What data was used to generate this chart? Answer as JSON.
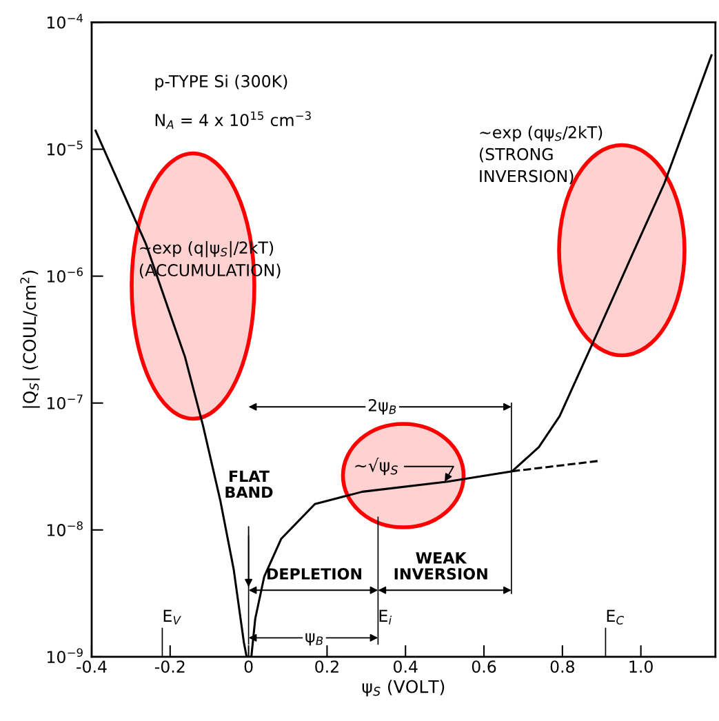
{
  "chart_data": {
    "type": "line",
    "xlabel": "ψ$_{S}$ (VOLT)",
    "ylabel": "|Q$_{S}$| (COUL/cm$^{2}$)",
    "log": "y",
    "xlim": [
      -0.4,
      1.19
    ],
    "ylim": [
      1e-09,
      0.0001
    ],
    "xticks": [
      {
        "value": -0.4,
        "label": "-0.4"
      },
      {
        "value": -0.2,
        "label": "-0.2"
      },
      0,
      0.2,
      0.4,
      0.6,
      0.8,
      {
        "value": 1.0,
        "label": "1.0"
      }
    ],
    "yticks": [
      {
        "value": 1e-09,
        "label": "10$^{−9}$"
      },
      {
        "value": 1e-08,
        "label": "10$^{−8}$"
      },
      {
        "value": 1e-07,
        "label": "10$^{−7}$"
      },
      {
        "value": 1e-06,
        "label": "10$^{−6}$"
      },
      {
        "value": 1e-05,
        "label": "10$^{−5}$"
      },
      {
        "value": 0.0001,
        "label": "10$^{−4}$"
      }
    ],
    "grid": false,
    "legend": false,
    "series": [
      {
        "color": "#000000",
        "line_style": "solid",
        "x": [
          -0.39,
          -0.262,
          -0.162,
          -0.116,
          -0.072,
          -0.038,
          -0.012,
          -0.005,
          0.007,
          0.017,
          0.04,
          0.083,
          0.169,
          0.29,
          0.507,
          0.672,
          0.74,
          0.793,
          0.893,
          0.979,
          1.06,
          1.18
        ],
        "values": [
          1.4e-05,
          1.8e-06,
          2.3e-07,
          6.6e-08,
          1.7e-08,
          4.9e-09,
          1.3e-09,
          1e-09,
          1e-09,
          2e-09,
          4.3e-09,
          8.5e-09,
          1.6e-08,
          2e-08,
          2.4e-08,
          2.9e-08,
          4.5e-08,
          7.9e-08,
          3.8e-07,
          1.5e-06,
          5.4e-06,
          5.5e-05
        ]
      },
      {
        "color": "#000000",
        "line_style": "dashed",
        "x": [
          0.672,
          0.893
        ],
        "values": [
          2.9e-08,
          3.5e-08
        ]
      }
    ],
    "ref_lines": [
      {
        "axis": "x",
        "value": 0
      },
      {
        "axis": "x",
        "value": 0.33,
        "label": "E$_{i}$"
      },
      {
        "axis": "x",
        "value": 0.67
      },
      {
        "axis": "x",
        "value": -0.22,
        "label": "E$_{V}$"
      },
      {
        "axis": "x",
        "value": 0.91,
        "label": "E$_{C}$"
      }
    ],
    "annotations": [
      "p-TYPE Si (300K)",
      "N$_{A}$ = 4 x 10$^{15}$ cm$^{−3}$",
      "~exp (q|ψ$_{S}$|/2kT)\n(ACCUMULATION)",
      "~exp (qψ$_{S}$/2kT)\n(STRONG\nINVERSION)",
      "FLAT\nBAND",
      "2ψ$_{B}$",
      "DEPLETION",
      "WEAK\nINVERSION",
      "ψ$_{B}$",
      {
        "text": "~√ψ$_{S}$",
        "x": 0.5,
        "y": 2.4e-08
      }
    ]
  }
}
